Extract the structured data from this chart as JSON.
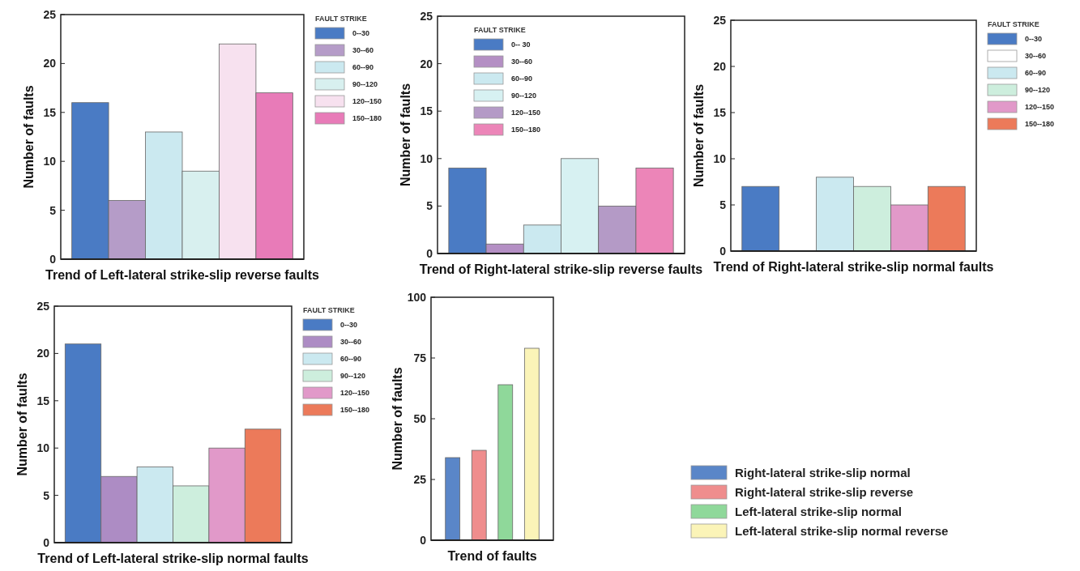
{
  "chart_data": [
    {
      "type": "bar",
      "xlabel": "Trend of Left-lateral strike-slip reverse faults",
      "ylabel": "Number of faults",
      "legend_title": "FAULT STRIKE",
      "legend": "right",
      "categories": [
        null
      ],
      "ylim": [
        0,
        25
      ],
      "yticks": [
        0,
        5,
        10,
        15,
        20,
        25
      ],
      "series": [
        {
          "name": "0--30",
          "color": "#4a7bc4",
          "values": [
            16
          ]
        },
        {
          "name": "30--60",
          "color": "#b59cc8",
          "values": [
            6
          ]
        },
        {
          "name": "60--90",
          "color": "#cbe9f0",
          "values": [
            13
          ]
        },
        {
          "name": "90--120",
          "color": "#d8f0ef",
          "values": [
            9
          ]
        },
        {
          "name": "120--150",
          "color": "#f7e1ef",
          "values": [
            22
          ]
        },
        {
          "name": "150--180",
          "color": "#e87bb8",
          "values": [
            17
          ]
        }
      ]
    },
    {
      "type": "bar",
      "xlabel": "Trend of Right-lateral strike-slip reverse faults",
      "ylabel": "Number of faults",
      "legend_title": "FAULT STRIKE",
      "legend": "top left",
      "categories": [
        null
      ],
      "ylim": [
        0,
        25
      ],
      "yticks": [
        0,
        5,
        10,
        15,
        20,
        25
      ],
      "series": [
        {
          "name": "0-- 30",
          "color": "#4a7bc4",
          "values": [
            9
          ]
        },
        {
          "name": "30--60",
          "color": "#b48fc4",
          "values": [
            1
          ]
        },
        {
          "name": "60--90",
          "color": "#cbe9f0",
          "values": [
            3
          ]
        },
        {
          "name": "90--120",
          "color": "#d7f1f2",
          "values": [
            10
          ]
        },
        {
          "name": "120--150",
          "color": "#b49ac6",
          "values": [
            5
          ]
        },
        {
          "name": "150--180",
          "color": "#ec85b8",
          "values": [
            9
          ]
        }
      ]
    },
    {
      "type": "bar",
      "xlabel": "Trend of Right-lateral strike-slip normal faults",
      "ylabel": "Number of faults",
      "legend_title": "FAULT STRIKE",
      "legend": "right",
      "categories": [
        null
      ],
      "ylim": [
        0,
        25
      ],
      "yticks": [
        0,
        5,
        10,
        15,
        20,
        25
      ],
      "series": [
        {
          "name": "0--30",
          "color": "#4a7bc4",
          "values": [
            7
          ]
        },
        {
          "name": "30--60",
          "color": "#ffffff",
          "values": [
            0
          ]
        },
        {
          "name": "60--90",
          "color": "#cbe9f0",
          "values": [
            8
          ]
        },
        {
          "name": "90--120",
          "color": "#cdeedd",
          "values": [
            7
          ]
        },
        {
          "name": "120--150",
          "color": "#e199c9",
          "values": [
            5
          ]
        },
        {
          "name": "150--180",
          "color": "#ec7a5a",
          "values": [
            7
          ]
        }
      ]
    },
    {
      "type": "bar",
      "xlabel": "Trend of Left-lateral strike-slip normal faults",
      "ylabel": "Number of faults",
      "legend_title": "FAULT STRIKE",
      "legend": "right",
      "categories": [
        null
      ],
      "ylim": [
        0,
        25
      ],
      "yticks": [
        0,
        5,
        10,
        15,
        20,
        25
      ],
      "series": [
        {
          "name": "0--30",
          "color": "#4a7bc4",
          "values": [
            21
          ]
        },
        {
          "name": "30--60",
          "color": "#ad8cc4",
          "values": [
            7
          ]
        },
        {
          "name": "60--90",
          "color": "#cbe9f0",
          "values": [
            8
          ]
        },
        {
          "name": "90--120",
          "color": "#cdeedd",
          "values": [
            6
          ]
        },
        {
          "name": "120--150",
          "color": "#e199c9",
          "values": [
            10
          ]
        },
        {
          "name": "150--180",
          "color": "#ec7a5a",
          "values": [
            12
          ]
        }
      ]
    },
    {
      "type": "bar",
      "xlabel": "Trend of faults",
      "ylabel": "Number of faults",
      "legend": "bottom right",
      "categories": [
        null
      ],
      "ylim": [
        0,
        100
      ],
      "yticks": [
        0,
        25,
        50,
        75,
        100
      ],
      "series": [
        {
          "name": "Right-lateral strike-slip normal",
          "color": "#5a86c8",
          "values": [
            34
          ]
        },
        {
          "name": "Right-lateral strike-slip reverse",
          "color": "#ef8d8d",
          "values": [
            37
          ]
        },
        {
          "name": "Left-lateral strike-slip normal",
          "color": "#8fd89a",
          "values": [
            64
          ]
        },
        {
          "name": "Left-lateral strike-slip normal reverse",
          "color": "#fbf4b8",
          "values": [
            79
          ]
        }
      ]
    }
  ]
}
